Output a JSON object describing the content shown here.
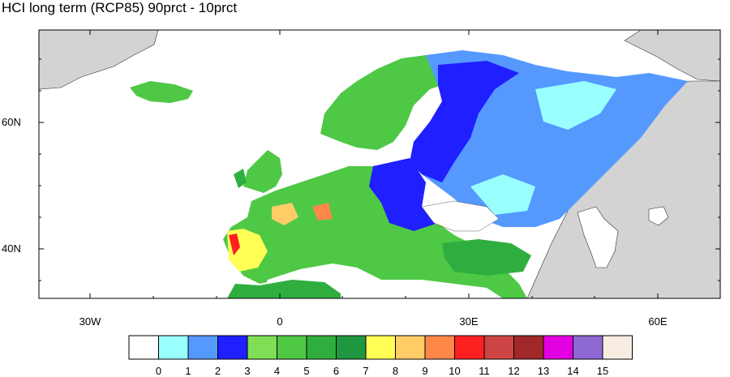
{
  "title": "HCI long term (RCP85) 90prct - 10prct",
  "axes": {
    "lat_labels": [
      "60N",
      "40N"
    ],
    "lon_labels": [
      "30W",
      "0",
      "30E",
      "60E"
    ]
  },
  "colors": {
    "land_gray": "#d3d3d3",
    "ocean": "#ffffff"
  },
  "colorbar": {
    "labels": [
      "0",
      "1",
      "2",
      "3",
      "4",
      "5",
      "6",
      "7",
      "8",
      "9",
      "10",
      "11",
      "12",
      "13",
      "14",
      "15"
    ],
    "colors": [
      "#ffffff",
      "#99ffff",
      "#5599ff",
      "#1f1fff",
      "#7fde55",
      "#4fc845",
      "#2fae3f",
      "#1f9740",
      "#ffff55",
      "#ffcc66",
      "#ff8848",
      "#ff2020",
      "#cc4444",
      "#a02828",
      "#e300e3",
      "#8e68d3",
      "#f7ede3"
    ]
  }
}
